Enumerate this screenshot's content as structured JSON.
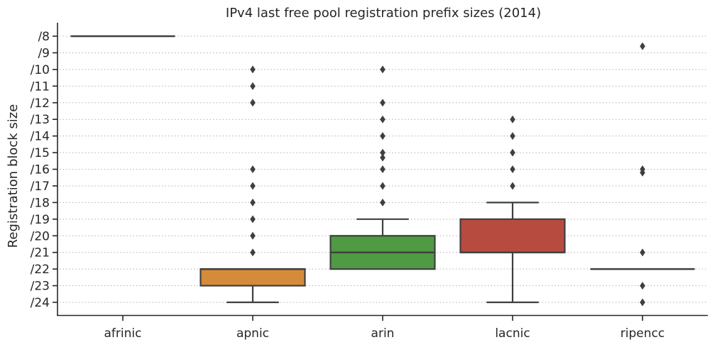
{
  "chart_data": {
    "type": "box",
    "title": "IPv4 last free pool registration prefix sizes (2014)",
    "xlabel": "",
    "ylabel": "Registration block size",
    "y_tick_labels": [
      "/8",
      "/9",
      "/10",
      "/11",
      "/12",
      "/13",
      "/14",
      "/15",
      "/16",
      "/17",
      "/18",
      "/19",
      "/20",
      "/21",
      "/22",
      "/23",
      "/24"
    ],
    "y_ticks": [
      8,
      9,
      10,
      11,
      12,
      13,
      14,
      15,
      16,
      17,
      18,
      19,
      20,
      21,
      22,
      23,
      24
    ],
    "ylim": [
      7.3,
      24.8
    ],
    "y_inverted": true,
    "grid": "horizontal dotted",
    "categories": [
      "afrinic",
      "apnic",
      "arin",
      "lacnic",
      "ripencc"
    ],
    "series": [
      {
        "category": "afrinic",
        "q1": 8,
        "median": 8,
        "q3": 8,
        "whisker_low": 8,
        "whisker_high": 8,
        "outliers": [],
        "color": "#3b6fb0"
      },
      {
        "category": "apnic",
        "q1": 22,
        "median": 22,
        "q3": 23,
        "whisker_low": 22,
        "whisker_high": 24,
        "outliers": [
          10,
          11,
          12,
          16,
          17,
          18,
          19,
          20,
          21
        ],
        "color": "#d58b3a"
      },
      {
        "category": "arin",
        "q1": 20,
        "median": 21,
        "q3": 22,
        "whisker_low": 19,
        "whisker_high": 22,
        "outliers": [
          10,
          12,
          13,
          14,
          15,
          15.3,
          16,
          17,
          18
        ],
        "color": "#4f9a42"
      },
      {
        "category": "lacnic",
        "q1": 19,
        "median": 21,
        "q3": 21,
        "whisker_low": 18,
        "whisker_high": 24,
        "outliers": [
          13,
          14,
          15,
          16,
          17
        ],
        "color": "#b74b40"
      },
      {
        "category": "ripencc",
        "q1": 22,
        "median": 22,
        "q3": 22,
        "whisker_low": 22,
        "whisker_high": 22,
        "outliers": [
          8.6,
          16,
          16.2,
          21,
          23,
          24
        ],
        "color": "#c44e52"
      }
    ]
  }
}
